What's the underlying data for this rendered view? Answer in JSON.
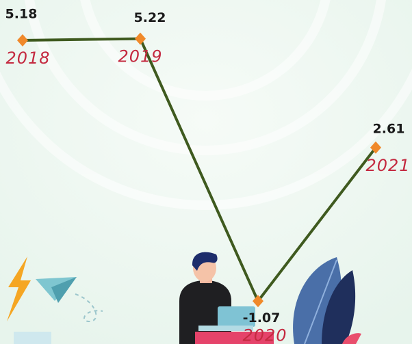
{
  "chart_data": {
    "type": "line",
    "categories": [
      "2018",
      "2019",
      "2020",
      "2021"
    ],
    "values": [
      5.18,
      5.22,
      -1.07,
      2.61
    ],
    "color": "#3f5a1f",
    "marker_color": "#f0892a",
    "label_color": "#c42a40"
  }
}
